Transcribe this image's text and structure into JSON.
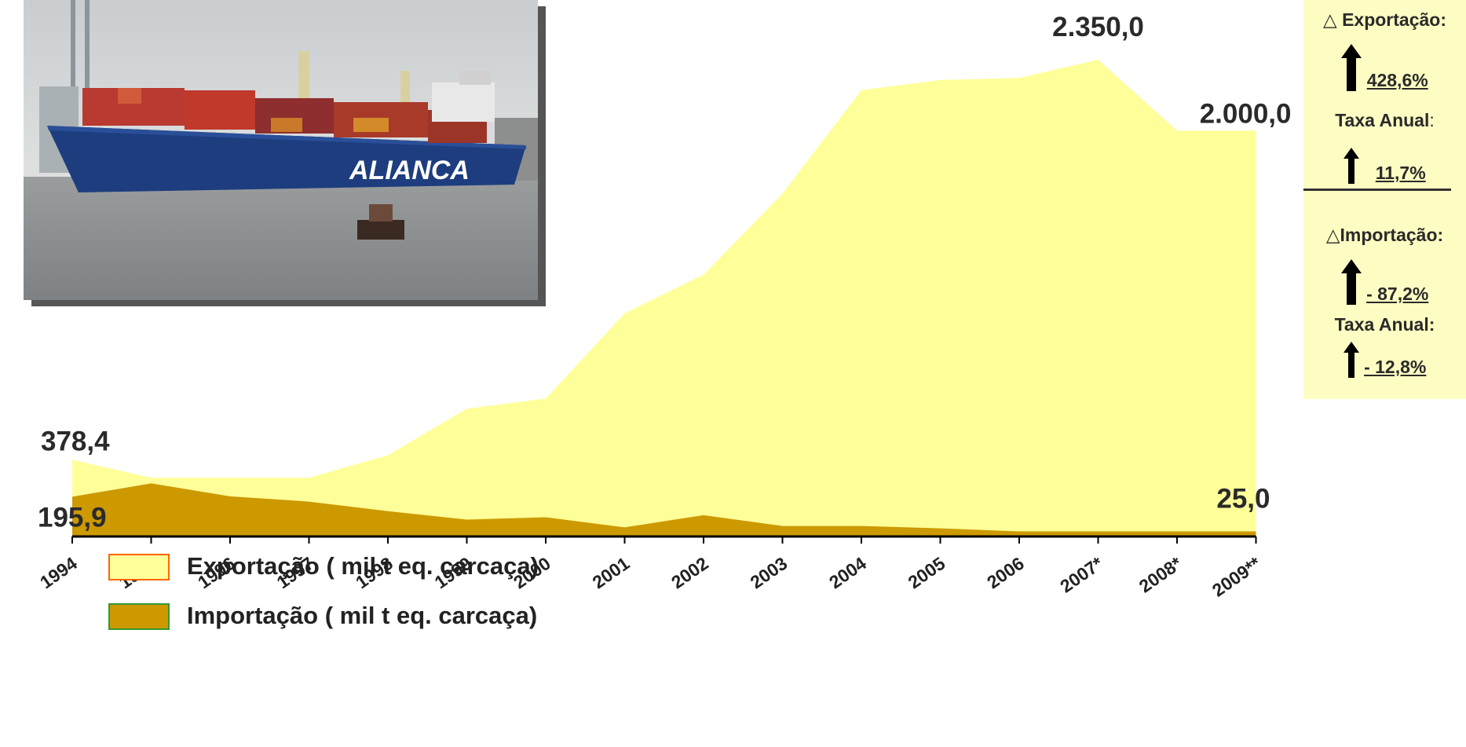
{
  "chart_data": {
    "type": "area",
    "categories": [
      "1994",
      "1995",
      "1996",
      "1997",
      "1998",
      "1999",
      "2000",
      "2001",
      "2002",
      "2003",
      "2004",
      "2005",
      "2006",
      "2007*",
      "2008*",
      "2009**"
    ],
    "series": [
      {
        "name": "Exportação ( mil t eq. carcaça)",
        "values": [
          378.4,
          290,
          290,
          290,
          400,
          630,
          680,
          1100,
          1290,
          1690,
          2200,
          2250,
          2260,
          2350,
          2000,
          2000
        ],
        "color": "#ffff99"
      },
      {
        "name": "Importação ( mil t eq. carcaça)",
        "values": [
          195.9,
          262,
          198,
          172,
          125,
          83,
          95,
          45,
          105,
          52,
          52,
          40,
          25,
          25,
          25,
          25.0
        ],
        "color": "#cc9900"
      }
    ],
    "ylim": [
      0,
      2350
    ],
    "data_labels": [
      {
        "text": "378,4"
      },
      {
        "text": "195,9"
      },
      {
        "text": "2.350,0"
      },
      {
        "text": "2.000,0"
      },
      {
        "text": "25,0"
      }
    ],
    "legend_placement": "bottom-left"
  },
  "legend": [
    {
      "label": "Exportação ( mil t eq. carcaça)",
      "fill": "#ffff99",
      "border": "#ff6600"
    },
    {
      "label": "Importação ( mil t eq. carcaça)",
      "fill": "#cc9900",
      "border": "#339933"
    }
  ],
  "panel": {
    "export_title": "Exportação:",
    "export_pct": "428,6%",
    "export_rate_label": "Taxa Anual",
    "export_rate_colon": ":",
    "export_rate": "11,7%",
    "import_title": "Importação:",
    "import_pct": "- 87,2%",
    "import_rate_label": "Taxa Anual:",
    "import_rate": "- 12,8%",
    "delta_icon": "delta-icon",
    "arrow_icon": "up-arrow-icon"
  },
  "photo": {
    "ship_text": "ALIANCA"
  }
}
